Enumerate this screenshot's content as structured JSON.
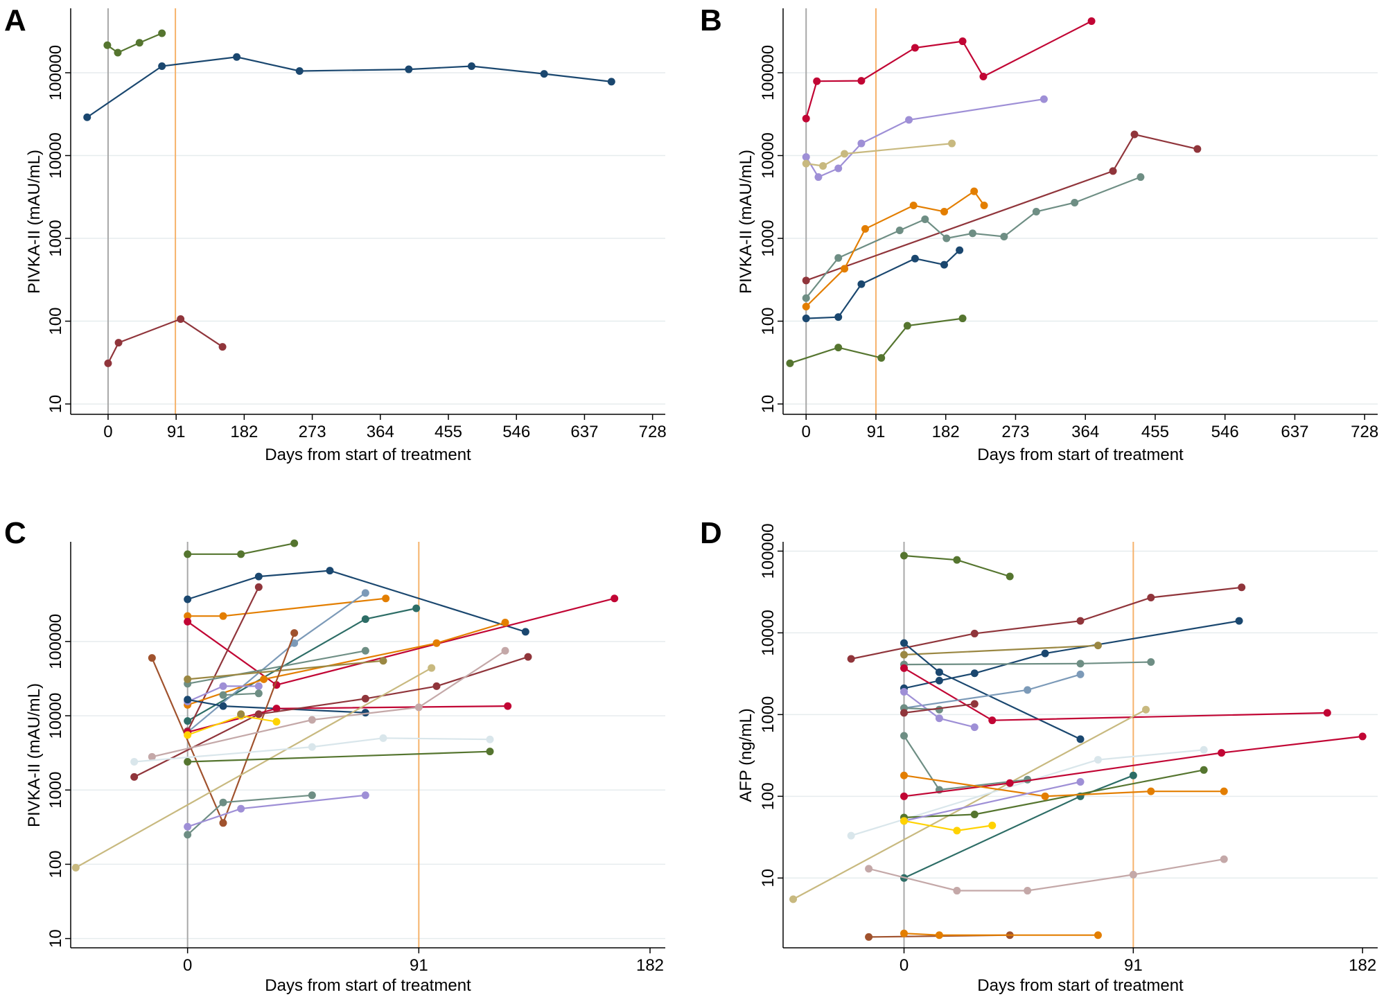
{
  "figure_title": "",
  "chart_data": [
    {
      "panel": "A",
      "type": "line",
      "scale": "log",
      "xlabel": "Days from start of treatment",
      "ylabel": "PIVKA-II (mAU/mL)",
      "xlim": [
        -50,
        745
      ],
      "ylim": [
        7.5,
        600000
      ],
      "x_ticks": [
        0,
        91,
        182,
        273,
        364,
        455,
        546,
        637,
        728
      ],
      "y_ticks": [
        10,
        100,
        1000,
        10000,
        100000
      ],
      "y_tick_labels": [
        "10",
        "100",
        "1000",
        "10000",
        "100000"
      ],
      "grid": "horizontal",
      "reference_lines": [
        {
          "x": 0,
          "color": "#a8a8a8"
        },
        {
          "x": 90,
          "color": "#f6b26b"
        }
      ],
      "series": [
        {
          "color": "#1a476f",
          "x": [
            -28,
            72,
            172,
            256,
            402,
            486,
            583,
            673
          ],
          "values": [
            29000,
            120000,
            155000,
            105000,
            110000,
            120000,
            97000,
            78000
          ]
        },
        {
          "color": "#55752f",
          "x": [
            -1,
            13,
            42,
            72
          ],
          "values": [
            215000,
            175000,
            230000,
            300000
          ]
        },
        {
          "color": "#90353b",
          "x": [
            0,
            14,
            97,
            153
          ],
          "values": [
            31,
            55,
            106,
            49
          ]
        }
      ]
    },
    {
      "panel": "B",
      "type": "line",
      "scale": "log",
      "xlabel": "Days from start of treatment",
      "ylabel": "PIVKA-II (mAU/mL)",
      "xlim": [
        -30,
        745
      ],
      "ylim": [
        7.5,
        600000
      ],
      "x_ticks": [
        0,
        91,
        182,
        273,
        364,
        455,
        546,
        637,
        728
      ],
      "y_ticks": [
        10,
        100,
        1000,
        10000,
        100000
      ],
      "y_tick_labels": [
        "10",
        "100",
        "1000",
        "10000",
        "100000"
      ],
      "grid": "horizontal",
      "reference_lines": [
        {
          "x": 0,
          "color": "#a8a8a8"
        },
        {
          "x": 91,
          "color": "#f6b26b"
        }
      ],
      "series": [
        {
          "color": "#c10534",
          "x": [
            0,
            14,
            72,
            142,
            204,
            231,
            372
          ],
          "values": [
            28000,
            79000,
            80000,
            200000,
            240000,
            90000,
            420000
          ]
        },
        {
          "color": "#9e8fd6",
          "x": [
            0,
            16,
            42,
            72,
            134,
            310
          ],
          "values": [
            9600,
            5500,
            7000,
            14000,
            27000,
            48000
          ]
        },
        {
          "color": "#c8b97f",
          "x": [
            0,
            22,
            50,
            190
          ],
          "values": [
            8000,
            7500,
            10500,
            14000
          ]
        },
        {
          "color": "#90353b",
          "x": [
            0,
            400,
            428,
            510
          ],
          "values": [
            310,
            6500,
            18000,
            12000
          ]
        },
        {
          "color": "#6e8e84",
          "x": [
            0,
            42,
            122,
            155,
            183,
            217,
            258,
            300,
            350,
            436
          ],
          "values": [
            190,
            580,
            1250,
            1700,
            1000,
            1150,
            1050,
            2100,
            2700,
            5500
          ]
        },
        {
          "color": "#e37e00",
          "x": [
            0,
            50,
            77,
            140,
            180,
            219,
            232
          ],
          "values": [
            150,
            430,
            1300,
            2500,
            2100,
            3700,
            2500
          ]
        },
        {
          "color": "#1a476f",
          "x": [
            0,
            42,
            72,
            142,
            180,
            200
          ],
          "values": [
            108,
            112,
            280,
            570,
            480,
            720
          ]
        },
        {
          "color": "#55752f",
          "x": [
            -21,
            42,
            98,
            132,
            204
          ],
          "values": [
            31,
            48,
            36,
            88,
            108
          ]
        }
      ]
    },
    {
      "panel": "C",
      "type": "line",
      "scale": "log",
      "xlabel": "Days from start of treatment",
      "ylabel": "PIVKA-II (mAU/mL)",
      "xlim": [
        -46,
        188
      ],
      "ylim": [
        7.5,
        2200000
      ],
      "x_ticks": [
        0,
        91,
        182
      ],
      "y_ticks": [
        10,
        100,
        1000,
        10000,
        100000
      ],
      "y_tick_labels": [
        "10",
        "100",
        "1000",
        "10000",
        "100000"
      ],
      "grid": "horizontal",
      "reference_lines": [
        {
          "x": 0,
          "color": "#a8a8a8"
        },
        {
          "x": 91,
          "color": "#f6b26b"
        }
      ],
      "series": [
        {
          "color": "#55752f",
          "x": [
            0,
            21,
            42
          ],
          "values": [
            1500000,
            1500000,
            2100000
          ]
        },
        {
          "color": "#1a476f",
          "x": [
            0,
            28,
            56,
            133
          ],
          "values": [
            370000,
            750000,
            900000,
            135000
          ]
        },
        {
          "color": "#e37e00",
          "x": [
            0,
            14,
            78
          ],
          "values": [
            220000,
            220000,
            380000
          ]
        },
        {
          "color": "#2d6d66",
          "x": [
            0,
            70,
            90
          ],
          "values": [
            8500,
            200000,
            280000
          ]
        },
        {
          "color": "#c10534",
          "x": [
            0,
            35,
            168
          ],
          "values": [
            185000,
            26000,
            380000
          ]
        },
        {
          "color": "#90353b",
          "x": [
            0,
            28
          ],
          "values": [
            6200,
            540000
          ]
        },
        {
          "color": "#7c9ab8",
          "x": [
            0,
            42,
            70
          ],
          "values": [
            6000,
            95000,
            450000
          ]
        },
        {
          "color": "#e37e00",
          "x": [
            0,
            30,
            98,
            125
          ],
          "values": [
            14000,
            31000,
            95000,
            180000
          ]
        },
        {
          "color": "#6e8e84",
          "x": [
            0,
            70
          ],
          "values": [
            27000,
            75000
          ]
        },
        {
          "color": "#9a8742",
          "x": [
            0,
            77
          ],
          "values": [
            31000,
            55000
          ]
        },
        {
          "color": "#9e8fd6",
          "x": [
            0,
            14,
            28
          ],
          "values": [
            15500,
            25000,
            25000
          ]
        },
        {
          "color": "#1a476f",
          "x": [
            0,
            14,
            70
          ],
          "values": [
            16500,
            13500,
            11000
          ]
        },
        {
          "color": "#6e8e84",
          "x": [
            14,
            28
          ],
          "values": [
            19000,
            20000
          ]
        },
        {
          "color": "#a0522d",
          "x": [
            -14,
            14,
            42
          ],
          "values": [
            60000,
            360,
            130000
          ]
        },
        {
          "color": "#c10534",
          "x": [
            0,
            35,
            126
          ],
          "values": [
            6000,
            12500,
            13500
          ]
        },
        {
          "color": "#90353b",
          "x": [
            -21,
            28,
            70,
            98,
            134
          ],
          "values": [
            1500,
            10500,
            17000,
            25000,
            62000
          ]
        },
        {
          "color": "#c4a8a8",
          "x": [
            -14,
            49,
            91,
            125
          ],
          "values": [
            2800,
            8800,
            13000,
            75000
          ]
        },
        {
          "color": "#c8b97f",
          "x": [
            -44,
            96
          ],
          "values": [
            90,
            44000
          ]
        },
        {
          "color": "#ffd200",
          "x": [
            0,
            21,
            35
          ],
          "values": [
            5500,
            10000,
            8300
          ]
        },
        {
          "color": "#d9e6eb",
          "x": [
            -21,
            49,
            77,
            119
          ],
          "values": [
            2400,
            3800,
            5000,
            4800
          ]
        },
        {
          "color": "#55752f",
          "x": [
            0,
            119
          ],
          "values": [
            2400,
            3300
          ]
        },
        {
          "color": "#9a8742",
          "x": [
            21
          ],
          "values": [
            10500
          ]
        },
        {
          "color": "#6e8e84",
          "x": [
            0,
            14,
            49
          ],
          "values": [
            250,
            680,
            850
          ]
        },
        {
          "color": "#9e8fd6",
          "x": [
            0,
            21,
            70
          ],
          "values": [
            320,
            560,
            850
          ]
        }
      ]
    },
    {
      "panel": "D",
      "type": "line",
      "scale": "log",
      "xlabel": "Days from start of treatment",
      "ylabel": "AFP (ng/mL)",
      "xlim": [
        -48,
        188
      ],
      "ylim": [
        1.4,
        130000
      ],
      "x_ticks": [
        0,
        91,
        182
      ],
      "y_ticks": [
        10,
        100,
        1000,
        10000,
        100000
      ],
      "y_tick_labels": [
        "10",
        "100",
        "1000",
        "10000",
        "100000"
      ],
      "grid": "horizontal",
      "reference_lines": [
        {
          "x": 0,
          "color": "#a8a8a8"
        },
        {
          "x": 91,
          "color": "#f6b26b"
        }
      ],
      "series": [
        {
          "color": "#55752f",
          "x": [
            0,
            21,
            42
          ],
          "values": [
            88000,
            78000,
            49000
          ]
        },
        {
          "color": "#90353b",
          "x": [
            -21,
            28,
            70,
            98,
            134
          ],
          "values": [
            4800,
            9800,
            14000,
            27000,
            36000
          ]
        },
        {
          "color": "#1a476f",
          "x": [
            0,
            14,
            28,
            56,
            133
          ],
          "values": [
            2100,
            2600,
            3200,
            5600,
            14000
          ]
        },
        {
          "color": "#9a8742",
          "x": [
            0,
            77
          ],
          "values": [
            5400,
            7000
          ]
        },
        {
          "color": "#6e8e84",
          "x": [
            0,
            70,
            98
          ],
          "values": [
            4100,
            4200,
            4400
          ]
        },
        {
          "color": "#1a476f",
          "x": [
            0,
            14,
            70
          ],
          "values": [
            7500,
            3300,
            500
          ]
        },
        {
          "color": "#c10534",
          "x": [
            0,
            35,
            168
          ],
          "values": [
            3700,
            850,
            1050
          ]
        },
        {
          "color": "#7c9ab8",
          "x": [
            0,
            49,
            70
          ],
          "values": [
            1200,
            2000,
            3100
          ]
        },
        {
          "color": "#9e8fd6",
          "x": [
            0,
            14,
            28
          ],
          "values": [
            1900,
            900,
            700
          ]
        },
        {
          "color": "#6e8e84",
          "x": [
            0,
            14
          ],
          "values": [
            1200,
            1150
          ]
        },
        {
          "color": "#90353b",
          "x": [
            0,
            28
          ],
          "values": [
            1050,
            1350
          ]
        },
        {
          "color": "#c8b97f",
          "x": [
            -44,
            96
          ],
          "values": [
            5.5,
            1150
          ]
        },
        {
          "color": "#d9e6eb",
          "x": [
            -21,
            77,
            119
          ],
          "values": [
            33,
            280,
            370
          ]
        },
        {
          "color": "#6e8e84",
          "x": [
            0,
            14,
            49
          ],
          "values": [
            550,
            120,
            160
          ]
        },
        {
          "color": "#c10534",
          "x": [
            0,
            42,
            126,
            182
          ],
          "values": [
            100,
            145,
            340,
            540
          ]
        },
        {
          "color": "#2d6d66",
          "x": [
            0,
            70,
            91
          ],
          "values": [
            10,
            100,
            180
          ]
        },
        {
          "color": "#55752f",
          "x": [
            0,
            28,
            119
          ],
          "values": [
            55,
            60,
            210
          ]
        },
        {
          "color": "#e37e00",
          "x": [
            0,
            56,
            98,
            127
          ],
          "values": [
            180,
            100,
            115,
            115
          ]
        },
        {
          "color": "#9e8fd6",
          "x": [
            0,
            70
          ],
          "values": [
            50,
            150
          ]
        },
        {
          "color": "#ffd200",
          "x": [
            0,
            21,
            35
          ],
          "values": [
            50,
            38,
            44
          ]
        },
        {
          "color": "#c4a8a8",
          "x": [
            -14,
            21,
            49,
            91,
            127
          ],
          "values": [
            13,
            7,
            7,
            11,
            17
          ]
        },
        {
          "color": "#a0522d",
          "x": [
            -14,
            42
          ],
          "values": [
            1.9,
            2.0
          ]
        },
        {
          "color": "#e37e00",
          "x": [
            0,
            14,
            77
          ],
          "values": [
            2.1,
            2.0,
            2.0
          ]
        }
      ]
    }
  ]
}
